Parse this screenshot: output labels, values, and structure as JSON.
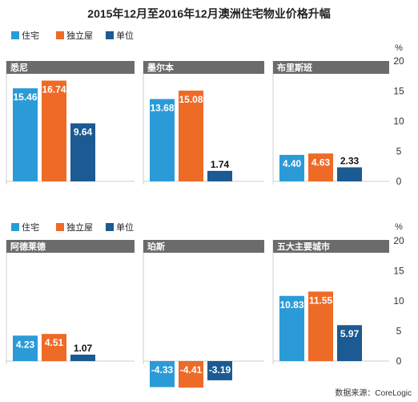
{
  "title": "2015年12月至2016年12月澳洲住宅物业价格升幅",
  "legend": [
    {
      "label": "住宅",
      "color": "#2b9bd8"
    },
    {
      "label": "独立屋",
      "color": "#ee6a27"
    },
    {
      "label": "单位",
      "color": "#1b5a92"
    }
  ],
  "source": "数据来源：CoreLogic",
  "chart_data": {
    "type": "bar",
    "unit": "%",
    "series_names": [
      "住宅",
      "独立屋",
      "单位"
    ],
    "ylim": [
      -5,
      20
    ],
    "y_ticks": [
      0,
      5,
      10,
      15,
      20
    ],
    "panels": [
      {
        "title": "悉尼",
        "values": [
          15.46,
          16.74,
          9.64
        ]
      },
      {
        "title": "墨尔本",
        "values": [
          13.68,
          15.08,
          1.74
        ]
      },
      {
        "title": "布里斯班",
        "values": [
          4.4,
          4.63,
          2.33
        ]
      },
      {
        "title": "阿德莱德",
        "values": [
          4.23,
          4.51,
          1.07
        ]
      },
      {
        "title": "珀斯",
        "values": [
          -4.33,
          -4.41,
          -3.19
        ]
      },
      {
        "title": "五大主要城市",
        "values": [
          10.83,
          11.55,
          5.97
        ]
      }
    ],
    "value_labels": [
      [
        "15.46",
        "16.74",
        "9.64"
      ],
      [
        "13.68",
        "15.08",
        "1.74"
      ],
      [
        "4.40",
        "4.63",
        "2.33"
      ],
      [
        "4.23",
        "4.51",
        "1.07"
      ],
      [
        "-4.33",
        "-4.41",
        "-3.19"
      ],
      [
        "10.83",
        "11.55",
        "5.97"
      ]
    ]
  }
}
